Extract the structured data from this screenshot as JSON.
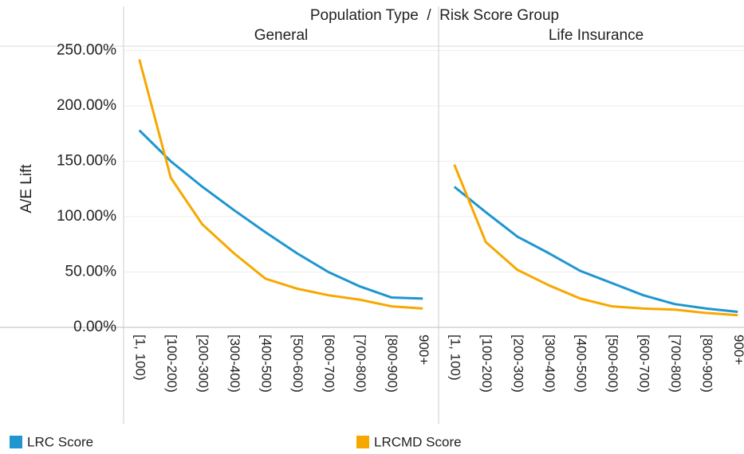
{
  "chart_data": {
    "type": "line",
    "title": "Population Type  /  Risk Score Group",
    "y_label": "A/E Lift",
    "categories": [
      "[1, 100)",
      "[100-200)",
      "[200-300)",
      "[300-400)",
      "[400-500)",
      "[500-600)",
      "[600-700)",
      "[700-800)",
      "[800-900)",
      "900+"
    ],
    "ylim": [
      0,
      254
    ],
    "yticks": [
      {
        "value": 0,
        "label": "0.00%"
      },
      {
        "value": 50,
        "label": "50.00%"
      },
      {
        "value": 100,
        "label": "100.00%"
      },
      {
        "value": 150,
        "label": "150.00%"
      },
      {
        "value": 200,
        "label": "200.00%"
      },
      {
        "value": 250,
        "label": "250.00%"
      }
    ],
    "grid": true,
    "panels": [
      {
        "name": "General",
        "series": [
          {
            "name": "LRC Score",
            "color": "#1f96d0",
            "values": [
              178,
              150,
              127,
              106,
              86,
              67,
              50,
              37,
              27,
              26
            ]
          },
          {
            "name": "LRCMD Score",
            "color": "#f7a800",
            "values": [
              242,
              135,
              93,
              67,
              44,
              35,
              29,
              25,
              19,
              17
            ]
          }
        ]
      },
      {
        "name": "Life Insurance",
        "series": [
          {
            "name": "LRC Score",
            "color": "#1f96d0",
            "values": [
              127,
              104,
              82,
              67,
              51,
              40,
              29,
              21,
              17,
              14
            ]
          },
          {
            "name": "LRCMD Score",
            "color": "#f7a800",
            "values": [
              147,
              77,
              52,
              38,
              26,
              19,
              17,
              16,
              13,
              11
            ]
          }
        ]
      }
    ]
  }
}
